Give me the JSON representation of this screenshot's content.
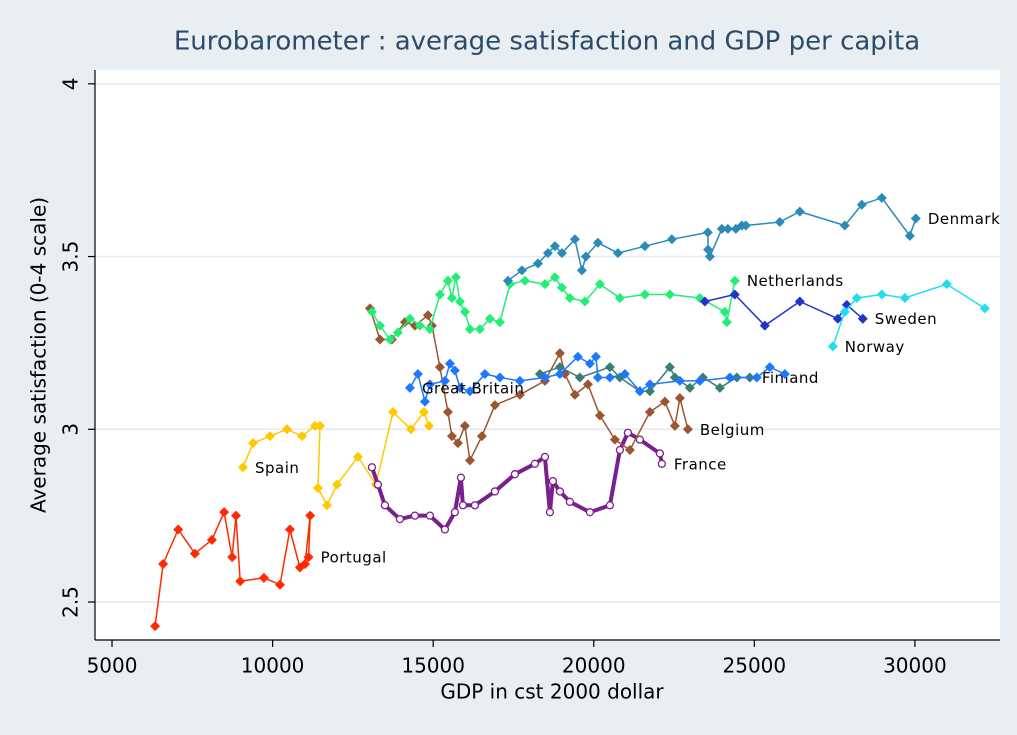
{
  "chart_data": {
    "type": "line",
    "title": "Eurobarometer : average satisfaction and GDP per capita",
    "x_label": "GDP in cst 2000 dollar",
    "y_label": "Average satisfaction (0-4 scale)",
    "xlim": [
      4470,
      32650
    ],
    "ylim": [
      2.39,
      4.04
    ],
    "xticks": [
      5000,
      10000,
      15000,
      20000,
      25000,
      30000
    ],
    "yticks": [
      2.5,
      3,
      3.5,
      4
    ],
    "grid": true,
    "series": [
      {
        "name": "Portugal",
        "color": "#ff2a00",
        "marker": "diamond",
        "line_width": 1.5,
        "x": [
          6340,
          6590,
          7060,
          7580,
          8110,
          8490,
          8740,
          8860,
          8990,
          9730,
          10230,
          10540,
          10850,
          11010,
          11170,
          11120
        ],
        "values": [
          2.43,
          2.61,
          2.71,
          2.64,
          2.68,
          2.76,
          2.63,
          2.75,
          2.56,
          2.57,
          2.55,
          2.71,
          2.6,
          2.61,
          2.75,
          2.63
        ]
      },
      {
        "name": "Spain",
        "color": "#ffc800",
        "marker": "diamond",
        "line_width": 1.5,
        "x": [
          14868,
          14713,
          14308,
          13748,
          13218,
          12658,
          12004,
          11693,
          11413,
          11475,
          11319,
          10915,
          10448,
          9919,
          9389,
          9078
        ],
        "values": [
          3.01,
          3.05,
          3.0,
          3.05,
          2.84,
          2.92,
          2.84,
          2.78,
          2.83,
          3.01,
          3.01,
          2.98,
          3.0,
          2.98,
          2.96,
          2.89
        ]
      },
      {
        "name": "France",
        "color": "#7a1f8e",
        "marker": "circle",
        "line_width": 4,
        "x": [
          13094,
          13280,
          13498,
          13965,
          14432,
          14899,
          15366,
          15677,
          15864,
          15926,
          16300,
          16923,
          17546,
          18168,
          18480,
          18635,
          18728,
          18946,
          19257,
          19880,
          20503,
          20814,
          21063,
          21436,
          22059,
          22121
        ],
        "values": [
          2.89,
          2.84,
          2.78,
          2.74,
          2.75,
          2.75,
          2.71,
          2.76,
          2.86,
          2.78,
          2.78,
          2.82,
          2.87,
          2.9,
          2.92,
          2.76,
          2.85,
          2.82,
          2.79,
          2.76,
          2.78,
          2.94,
          2.99,
          2.97,
          2.93,
          2.9
        ]
      },
      {
        "name": "Belgium",
        "color": "#9b5530",
        "marker": "diamond",
        "line_width": 1.5,
        "x": [
          13032,
          13343,
          13716,
          14121,
          14432,
          14837,
          14962,
          15211,
          15460,
          15584,
          15771,
          15989,
          16145,
          16518,
          16923,
          17701,
          18480,
          18946,
          19102,
          19413,
          19818,
          20192,
          20659,
          21126,
          21748,
          22215,
          22526,
          22682,
          22931
        ],
        "values": [
          3.35,
          3.26,
          3.26,
          3.31,
          3.3,
          3.33,
          3.3,
          3.18,
          3.05,
          2.98,
          2.96,
          3.01,
          2.91,
          2.98,
          3.07,
          3.1,
          3.14,
          3.22,
          3.16,
          3.1,
          3.13,
          3.04,
          2.97,
          2.94,
          3.05,
          3.08,
          3.01,
          3.09,
          3.0
        ]
      },
      {
        "name": "Finland",
        "color": "#3a7d78",
        "marker": "diamond",
        "line_width": 1.5,
        "x": [
          18324,
          18946,
          19568,
          20503,
          20814,
          21436,
          21748,
          22370,
          22526,
          22993,
          23397,
          23927,
          24456,
          24860
        ],
        "values": [
          3.16,
          3.18,
          3.15,
          3.18,
          3.15,
          3.11,
          3.11,
          3.18,
          3.15,
          3.12,
          3.15,
          3.12,
          3.15,
          3.15
        ]
      },
      {
        "name": "Great Britain",
        "color": "#1e78ff",
        "marker": "diamond",
        "line_width": 1.5,
        "x": [
          25950,
          25483,
          25078,
          24238,
          23304,
          22682,
          21748,
          21436,
          20970,
          20503,
          20129,
          20067,
          19880,
          19506,
          18946,
          18480,
          17701,
          17078,
          16611,
          16145,
          15833,
          15677,
          15522,
          15366,
          14899,
          14744,
          14526,
          14277
        ],
        "values": [
          3.16,
          3.18,
          3.15,
          3.15,
          3.14,
          3.14,
          3.13,
          3.11,
          3.16,
          3.15,
          3.15,
          3.21,
          3.19,
          3.21,
          3.16,
          3.15,
          3.14,
          3.15,
          3.16,
          3.11,
          3.12,
          3.17,
          3.19,
          3.14,
          3.13,
          3.08,
          3.16,
          3.12
        ]
      },
      {
        "name": "Netherlands",
        "color": "#22ee77",
        "marker": "diamond",
        "line_width": 1.5,
        "x": [
          13094,
          13343,
          13654,
          13903,
          14277,
          14588,
          14899,
          15211,
          15460,
          15584,
          15709,
          15833,
          15989,
          16145,
          16456,
          16767,
          17078,
          17390,
          17857,
          18480,
          18791,
          19009,
          19257,
          19724,
          20192,
          20814,
          21592,
          22370,
          23304,
          24082,
          24144,
          24393
        ],
        "values": [
          3.34,
          3.3,
          3.26,
          3.28,
          3.32,
          3.3,
          3.29,
          3.39,
          3.43,
          3.38,
          3.44,
          3.37,
          3.34,
          3.29,
          3.29,
          3.32,
          3.31,
          3.42,
          3.43,
          3.42,
          3.44,
          3.41,
          3.38,
          3.37,
          3.42,
          3.38,
          3.39,
          3.39,
          3.38,
          3.34,
          3.31,
          3.43
        ]
      },
      {
        "name": "Denmark",
        "color": "#2a8ab8",
        "marker": "diamond",
        "line_width": 1.5,
        "x": [
          17328,
          17764,
          18262,
          18573,
          18791,
          19009,
          19413,
          19631,
          19756,
          20129,
          20752,
          21592,
          22433,
          23553,
          23560,
          23616,
          23989,
          24176,
          24425,
          24612,
          24736,
          25794,
          26417,
          27818,
          28347,
          28970,
          29842,
          30029
        ],
        "values": [
          3.43,
          3.46,
          3.48,
          3.51,
          3.53,
          3.51,
          3.55,
          3.46,
          3.5,
          3.54,
          3.51,
          3.53,
          3.55,
          3.57,
          3.52,
          3.5,
          3.58,
          3.58,
          3.58,
          3.59,
          3.59,
          3.6,
          3.63,
          3.59,
          3.65,
          3.67,
          3.56,
          3.61
        ]
      },
      {
        "name": "Sweden",
        "color": "#2233cc",
        "marker": "diamond",
        "line_width": 1.5,
        "x": [
          23460,
          24393,
          25327,
          26417,
          27600,
          27880,
          28378
        ],
        "values": [
          3.37,
          3.39,
          3.3,
          3.37,
          3.32,
          3.36,
          3.32
        ]
      },
      {
        "name": "Norway",
        "color": "#22ddee",
        "marker": "diamond",
        "line_width": 1.5,
        "x": [
          32177,
          30994,
          29686,
          28970,
          28192,
          27818,
          27444
        ],
        "values": [
          3.35,
          3.42,
          3.38,
          3.39,
          3.38,
          3.34,
          3.24
        ]
      }
    ]
  }
}
